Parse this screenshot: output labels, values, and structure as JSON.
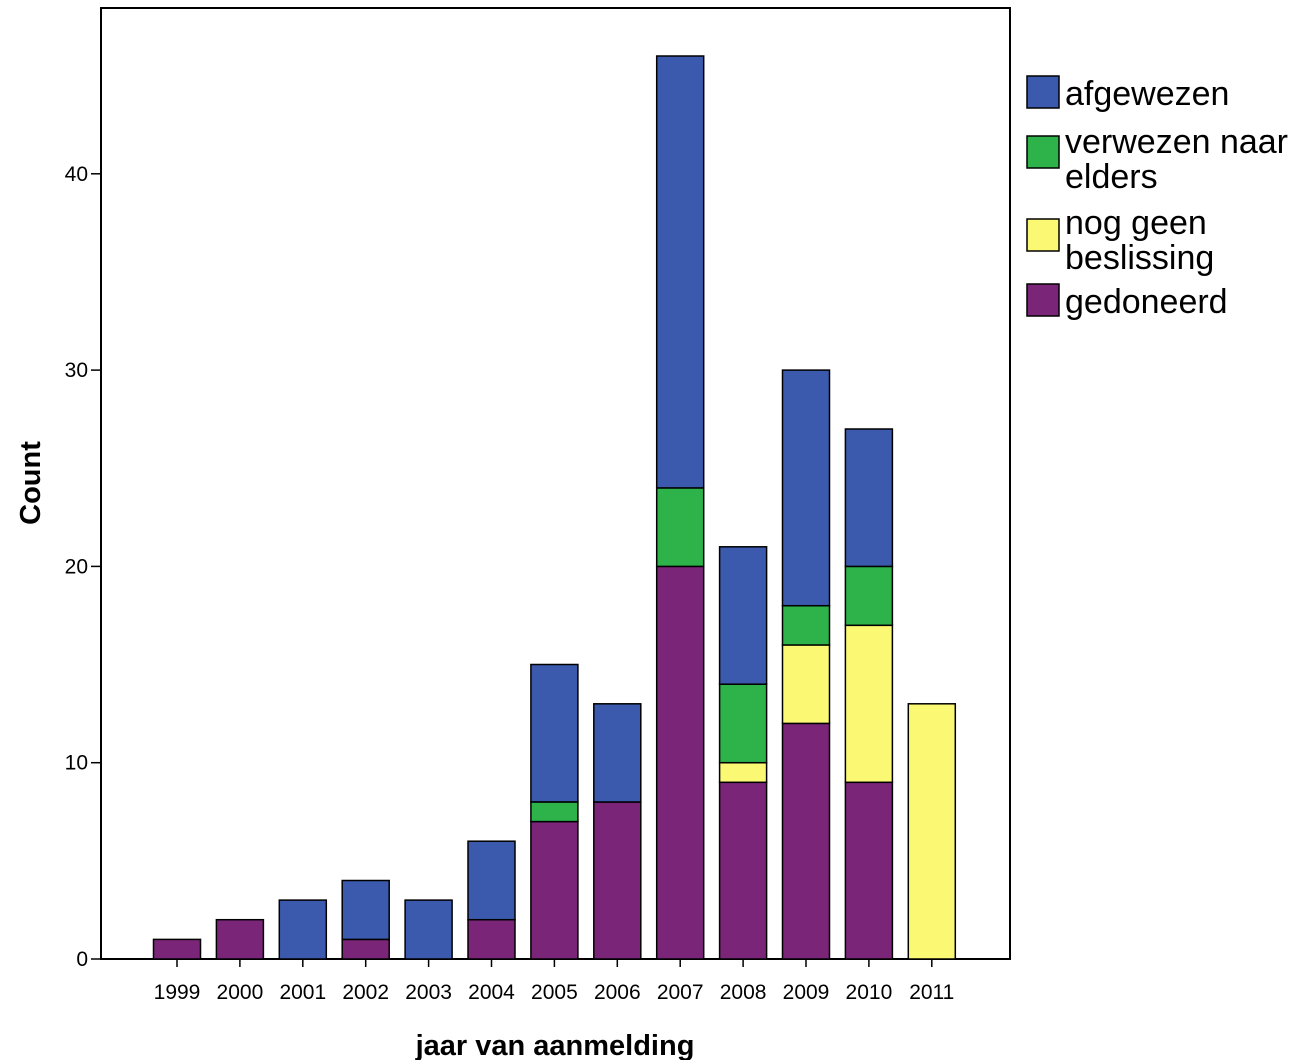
{
  "chart_data": {
    "type": "bar",
    "stacked": true,
    "title": "",
    "xlabel": "jaar van aanmelding",
    "ylabel": "Count",
    "ylim": [
      0,
      48.5
    ],
    "yticks": [
      0,
      10,
      20,
      30,
      40
    ],
    "grid": false,
    "legend_position": "right",
    "categories": [
      "1999",
      "2000",
      "2001",
      "2002",
      "2003",
      "2004",
      "2005",
      "2006",
      "2007",
      "2008",
      "2009",
      "2010",
      "2011"
    ],
    "series": [
      {
        "name": "gedoneerd",
        "color": "#7b2579",
        "values": [
          1,
          2,
          0,
          1,
          0,
          2,
          7,
          8,
          20,
          9,
          12,
          9,
          0
        ]
      },
      {
        "name": "nog geen beslissing",
        "color": "#fbf873",
        "values": [
          0,
          0,
          0,
          0,
          0,
          0,
          0,
          0,
          0,
          1,
          4,
          8,
          13
        ]
      },
      {
        "name": "verwezen naar elders",
        "color": "#2db34a",
        "values": [
          0,
          0,
          0,
          0,
          0,
          0,
          1,
          0,
          4,
          4,
          2,
          3,
          0
        ]
      },
      {
        "name": "afgewezen",
        "color": "#3c5aad",
        "values": [
          0,
          0,
          3,
          3,
          3,
          4,
          7,
          5,
          22,
          7,
          12,
          7,
          0
        ]
      }
    ],
    "legend_order": [
      "afgewezen",
      "verwezen naar elders",
      "nog geen beslissing",
      "gedoneerd"
    ]
  }
}
